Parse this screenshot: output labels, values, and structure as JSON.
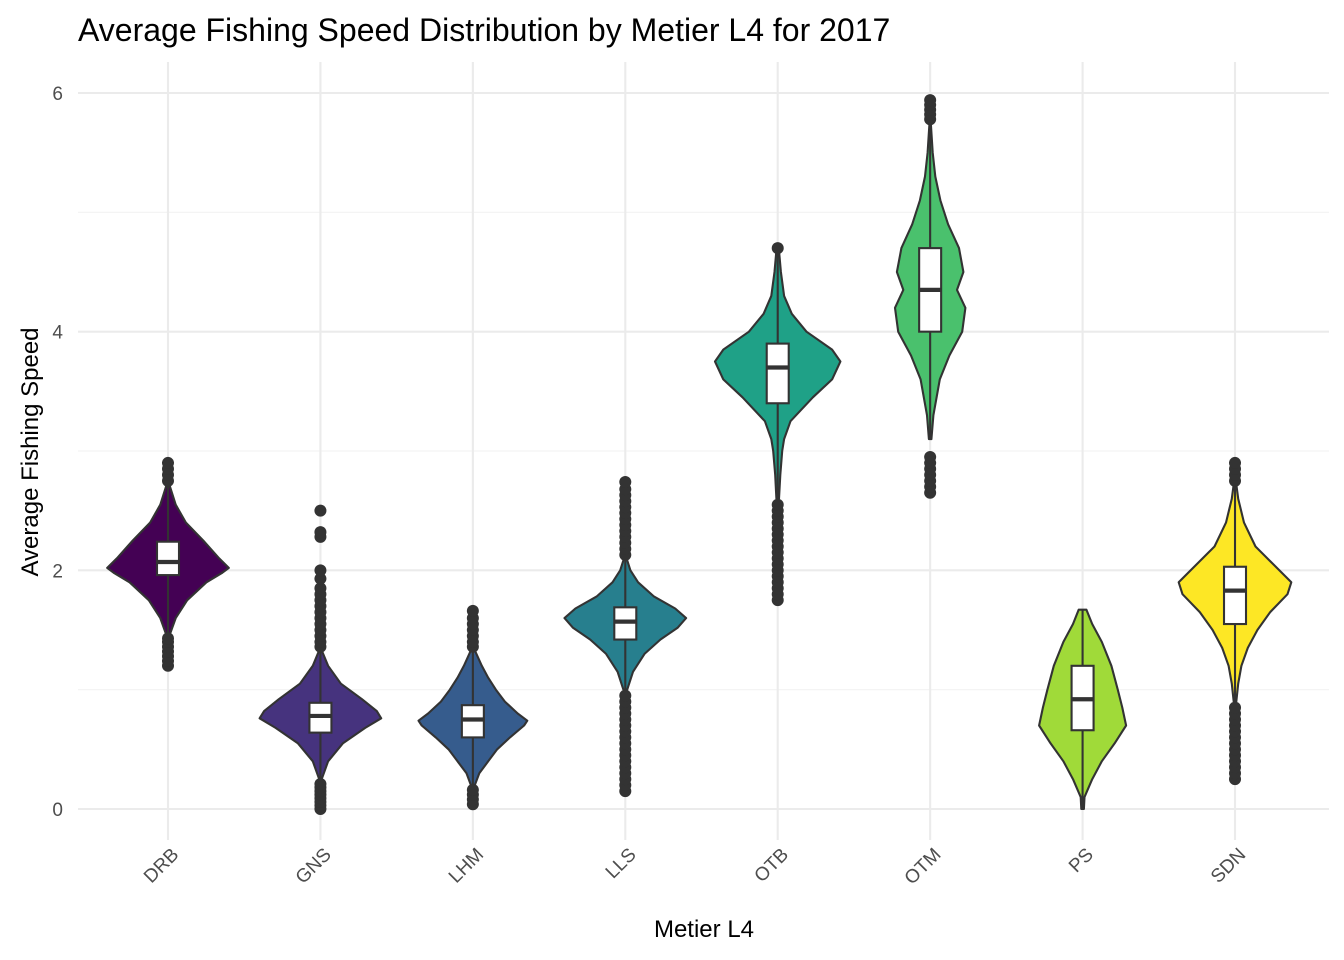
{
  "chart_data": {
    "type": "violin",
    "title": "Average Fishing Speed Distribution by Metier L4 for 2017",
    "xlabel": "Metier L4",
    "ylabel": "Average Fishing Speed",
    "ylim": [
      -0.25,
      6.15
    ],
    "yticks": [
      0,
      2,
      4,
      6
    ],
    "yminor": [
      1,
      3,
      5
    ],
    "grid": true,
    "legend": "none",
    "categories": [
      "DRB",
      "GNS",
      "LHM",
      "LLS",
      "OTB",
      "OTM",
      "PS",
      "SDN"
    ],
    "series": [
      {
        "category": "DRB",
        "color": "#440154",
        "violin": {
          "min": 1.45,
          "max": 2.72,
          "profile": [
            [
              1.45,
              0.02
            ],
            [
              1.6,
              0.12
            ],
            [
              1.75,
              0.3
            ],
            [
              1.9,
              0.6
            ],
            [
              1.98,
              0.85
            ],
            [
              2.02,
              0.95
            ],
            [
              2.1,
              0.8
            ],
            [
              2.25,
              0.55
            ],
            [
              2.4,
              0.28
            ],
            [
              2.55,
              0.12
            ],
            [
              2.72,
              0.02
            ]
          ]
        },
        "box": {
          "q1": 1.96,
          "median": 2.07,
          "q3": 2.24,
          "whisker_low": 1.45,
          "whisker_high": 2.72
        },
        "outliers": [
          1.2,
          1.24,
          1.28,
          1.32,
          1.36,
          1.4,
          1.43,
          2.75,
          2.8,
          2.85,
          2.9
        ]
      },
      {
        "category": "GNS",
        "color": "#46337e",
        "violin": {
          "min": 0.25,
          "max": 1.33,
          "profile": [
            [
              0.25,
              0.02
            ],
            [
              0.4,
              0.12
            ],
            [
              0.55,
              0.35
            ],
            [
              0.68,
              0.7
            ],
            [
              0.76,
              0.95
            ],
            [
              0.82,
              0.88
            ],
            [
              0.92,
              0.65
            ],
            [
              1.05,
              0.32
            ],
            [
              1.2,
              0.12
            ],
            [
              1.33,
              0.02
            ]
          ]
        },
        "box": {
          "q1": 0.64,
          "median": 0.78,
          "q3": 0.89,
          "whisker_low": 0.25,
          "whisker_high": 1.33
        },
        "outliers": [
          0.0,
          0.03,
          0.06,
          0.09,
          0.12,
          0.15,
          0.18,
          0.21,
          1.36,
          1.4,
          1.45,
          1.5,
          1.55,
          1.6,
          1.65,
          1.7,
          1.75,
          1.8,
          1.85,
          1.93,
          2.0,
          2.28,
          2.32,
          2.5
        ]
      },
      {
        "category": "LHM",
        "color": "#365c8d",
        "violin": {
          "min": 0.2,
          "max": 1.33,
          "profile": [
            [
              0.2,
              0.03
            ],
            [
              0.3,
              0.1
            ],
            [
              0.4,
              0.24
            ],
            [
              0.5,
              0.38
            ],
            [
              0.6,
              0.58
            ],
            [
              0.7,
              0.8
            ],
            [
              0.74,
              0.85
            ],
            [
              0.8,
              0.7
            ],
            [
              0.9,
              0.5
            ],
            [
              1.0,
              0.36
            ],
            [
              1.1,
              0.24
            ],
            [
              1.2,
              0.14
            ],
            [
              1.33,
              0.03
            ]
          ]
        },
        "box": {
          "q1": 0.6,
          "median": 0.75,
          "q3": 0.87,
          "whisker_low": 0.2,
          "whisker_high": 1.33
        },
        "outliers": [
          0.04,
          0.08,
          0.12,
          0.16,
          1.36,
          1.4,
          1.45,
          1.5,
          1.55,
          1.6,
          1.66
        ]
      },
      {
        "category": "LLS",
        "color": "#277f8e",
        "violin": {
          "min": 1.0,
          "max": 2.1,
          "profile": [
            [
              1.0,
              0.03
            ],
            [
              1.15,
              0.12
            ],
            [
              1.3,
              0.3
            ],
            [
              1.42,
              0.55
            ],
            [
              1.52,
              0.82
            ],
            [
              1.6,
              0.95
            ],
            [
              1.68,
              0.78
            ],
            [
              1.78,
              0.45
            ],
            [
              1.9,
              0.2
            ],
            [
              2.0,
              0.08
            ],
            [
              2.1,
              0.02
            ]
          ]
        },
        "box": {
          "q1": 1.42,
          "median": 1.57,
          "q3": 1.69,
          "whisker_low": 1.0,
          "whisker_high": 2.1
        },
        "outliers": [
          0.15,
          0.2,
          0.25,
          0.3,
          0.35,
          0.4,
          0.45,
          0.5,
          0.55,
          0.6,
          0.65,
          0.7,
          0.75,
          0.8,
          0.85,
          0.9,
          0.95,
          2.13,
          2.18,
          2.23,
          2.28,
          2.33,
          2.38,
          2.43,
          2.48,
          2.53,
          2.58,
          2.63,
          2.68,
          2.74
        ]
      },
      {
        "category": "OTB",
        "color": "#1fa187",
        "violin": {
          "min": 2.6,
          "max": 4.68,
          "profile": [
            [
              2.6,
              0.02
            ],
            [
              2.8,
              0.04
            ],
            [
              3.0,
              0.07
            ],
            [
              3.1,
              0.1
            ],
            [
              3.25,
              0.2
            ],
            [
              3.45,
              0.55
            ],
            [
              3.6,
              0.85
            ],
            [
              3.75,
              0.98
            ],
            [
              3.85,
              0.85
            ],
            [
              4.0,
              0.45
            ],
            [
              4.15,
              0.22
            ],
            [
              4.3,
              0.1
            ],
            [
              4.5,
              0.05
            ],
            [
              4.68,
              0.02
            ]
          ]
        },
        "box": {
          "q1": 3.4,
          "median": 3.7,
          "q3": 3.9,
          "whisker_low": 2.6,
          "whisker_high": 4.68
        },
        "outliers": [
          1.75,
          1.8,
          1.85,
          1.9,
          1.95,
          2.0,
          2.05,
          2.1,
          2.15,
          2.2,
          2.25,
          2.3,
          2.35,
          2.4,
          2.45,
          2.5,
          2.55,
          4.7
        ]
      },
      {
        "category": "OTM",
        "color": "#4ac16d",
        "violin": {
          "min": 3.1,
          "max": 5.75,
          "profile": [
            [
              3.1,
              0.02
            ],
            [
              3.3,
              0.05
            ],
            [
              3.6,
              0.15
            ],
            [
              3.8,
              0.3
            ],
            [
              4.0,
              0.5
            ],
            [
              4.2,
              0.55
            ],
            [
              4.35,
              0.42
            ],
            [
              4.5,
              0.52
            ],
            [
              4.7,
              0.45
            ],
            [
              4.9,
              0.28
            ],
            [
              5.1,
              0.16
            ],
            [
              5.3,
              0.08
            ],
            [
              5.5,
              0.04
            ],
            [
              5.75,
              0.01
            ]
          ]
        },
        "box": {
          "q1": 4.0,
          "median": 4.35,
          "q3": 4.7,
          "whisker_low": 3.1,
          "whisker_high": 5.75
        },
        "outliers": [
          2.65,
          2.7,
          2.75,
          2.8,
          2.85,
          2.9,
          2.95,
          5.78,
          5.82,
          5.86,
          5.9,
          5.94
        ]
      },
      {
        "category": "PS",
        "color": "#a0da39",
        "violin": {
          "min": 0.0,
          "max": 1.67,
          "profile": [
            [
              0.0,
              0.02
            ],
            [
              0.1,
              0.03
            ],
            [
              0.25,
              0.15
            ],
            [
              0.4,
              0.3
            ],
            [
              0.55,
              0.5
            ],
            [
              0.7,
              0.68
            ],
            [
              0.85,
              0.62
            ],
            [
              1.0,
              0.55
            ],
            [
              1.2,
              0.45
            ],
            [
              1.4,
              0.3
            ],
            [
              1.55,
              0.15
            ],
            [
              1.67,
              0.06
            ]
          ]
        },
        "box": {
          "q1": 0.66,
          "median": 0.92,
          "q3": 1.2,
          "whisker_low": 0.0,
          "whisker_high": 1.67
        },
        "outliers": []
      },
      {
        "category": "SDN",
        "color": "#fde725",
        "violin": {
          "min": 0.9,
          "max": 2.72,
          "profile": [
            [
              0.9,
              0.02
            ],
            [
              1.05,
              0.05
            ],
            [
              1.2,
              0.1
            ],
            [
              1.35,
              0.2
            ],
            [
              1.5,
              0.35
            ],
            [
              1.65,
              0.55
            ],
            [
              1.8,
              0.82
            ],
            [
              1.9,
              0.88
            ],
            [
              2.05,
              0.6
            ],
            [
              2.2,
              0.32
            ],
            [
              2.4,
              0.14
            ],
            [
              2.6,
              0.05
            ],
            [
              2.72,
              0.02
            ]
          ]
        },
        "box": {
          "q1": 1.55,
          "median": 1.83,
          "q3": 2.03,
          "whisker_low": 0.9,
          "whisker_high": 2.72
        },
        "outliers": [
          0.25,
          0.3,
          0.35,
          0.4,
          0.45,
          0.5,
          0.55,
          0.6,
          0.65,
          0.7,
          0.75,
          0.8,
          0.85,
          2.75,
          2.8,
          2.85,
          2.9
        ]
      }
    ]
  }
}
